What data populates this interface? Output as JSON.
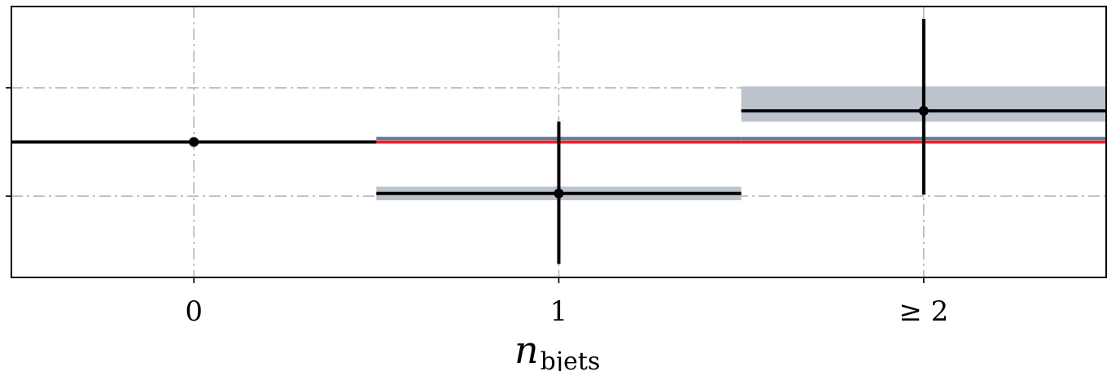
{
  "chart_data": {
    "type": "step",
    "xlabel": "n",
    "xlabel_sub": "bjets",
    "categories": [
      "0",
      "1",
      "≥ 2"
    ],
    "xlim": [
      -0.5,
      2.5
    ],
    "ylim": [
      0.0,
      1.0
    ],
    "y_major_ticks": [
      0.3,
      0.7
    ],
    "y_tick_labels": [
      "",
      ""
    ],
    "grid": true,
    "legend": "none",
    "colors": {
      "data": "#000000",
      "uncertainty": "#bcc3cd",
      "red_model": "#e8252b",
      "blue_model": "#5a7fa8",
      "grid": "#b0b8c4"
    },
    "series": [
      {
        "kind": "data_points",
        "values": [
          0.5,
          0.31,
          0.615
        ],
        "yerr_low": [
          0.0,
          0.26,
          0.31
        ],
        "yerr_high": [
          0.0,
          0.265,
          0.34
        ],
        "band_low": [
          0.5,
          0.285,
          0.575
        ],
        "band_high": [
          0.5,
          0.335,
          0.705
        ]
      },
      {
        "kind": "red_model",
        "values": [
          0.5,
          0.5,
          0.5
        ]
      },
      {
        "kind": "blue_model",
        "values": [
          0.5,
          0.513,
          0.513
        ]
      }
    ]
  }
}
